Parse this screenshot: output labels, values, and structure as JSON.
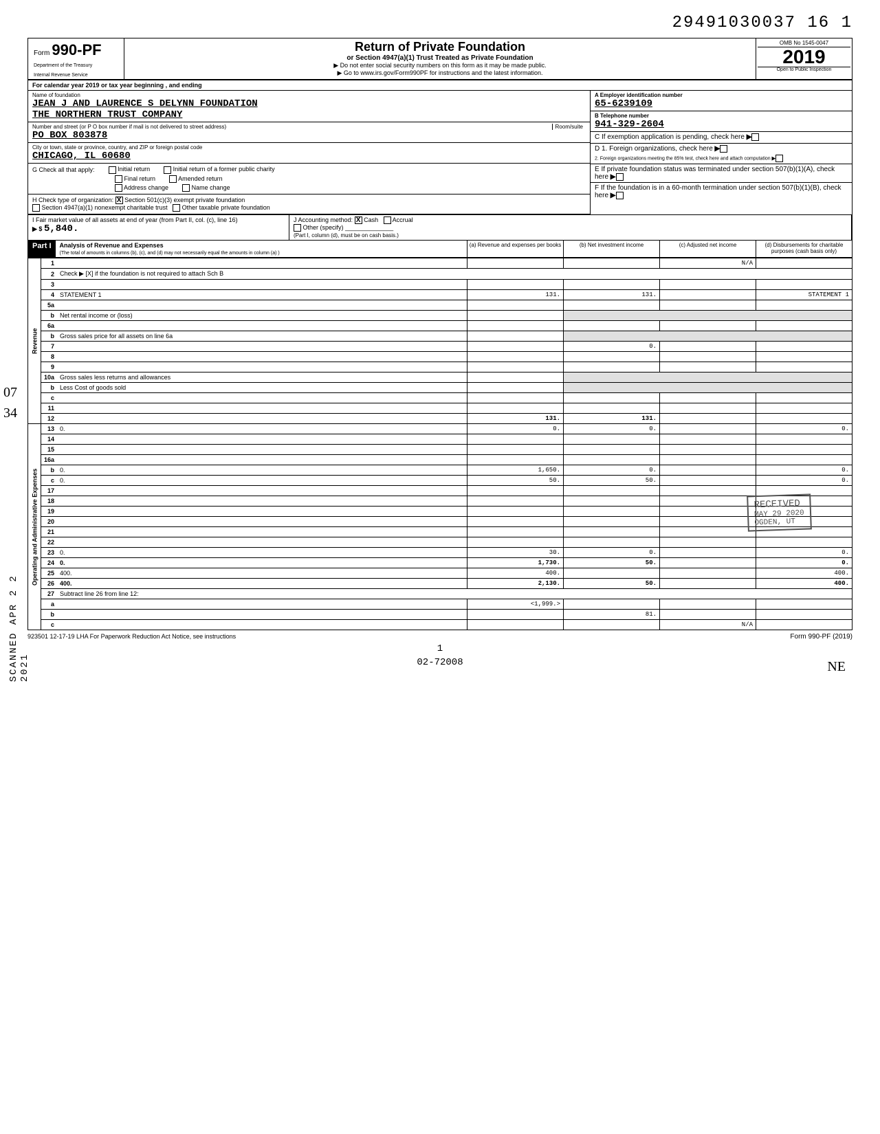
{
  "header": {
    "dln": "29491030037 16  1",
    "form_prefix": "Form",
    "form_number": "990-PF",
    "dept1": "Department of the Treasury",
    "dept2": "Internal Revenue Service",
    "title": "Return of Private Foundation",
    "subtitle": "or Section 4947(a)(1) Trust Treated as Private Foundation",
    "note1": "▶ Do not enter social security numbers on this form as it may be made public.",
    "note2": "▶ Go to www.irs.gov/Form990PF for instructions and the latest information.",
    "omb": "OMB No  1545-0047",
    "year": "2019",
    "open": "Open to Public Inspection"
  },
  "tax_year_line": "For calendar year 2019 or tax year beginning                                                              , and ending",
  "foundation": {
    "name_label": "Name of foundation",
    "name1": "JEAN J AND LAURENCE S DELYNN FOUNDATION",
    "name2": "THE NORTHERN TRUST COMPANY",
    "street_label": "Number and street (or P O  box number if mail is not delivered to street address)",
    "room_label": "Room/suite",
    "street": "PO BOX 803878",
    "city_label": "City or town, state or province, country, and ZIP or foreign postal code",
    "city": "CHICAGO, IL   60680"
  },
  "boxA": {
    "label": "A  Employer identification number",
    "value": "65-6239109"
  },
  "boxB": {
    "label": "B  Telephone number",
    "value": "941-329-2604"
  },
  "boxC": {
    "label": "C  If exemption application is pending, check here"
  },
  "boxD": {
    "line1": "D  1. Foreign organizations, check here",
    "line2": "2. Foreign organizations meeting the 85%  test, check here and attach computation"
  },
  "boxE": {
    "label": "E  If private foundation status was terminated under section 507(b)(1)(A), check here"
  },
  "boxF": {
    "label": "F  If the foundation is in a 60-month termination under section 507(b)(1)(B), check here"
  },
  "checkG": {
    "label": "G  Check all that apply:",
    "opts": [
      "Initial return",
      "Final return",
      "Address change",
      "Initial return of a former public charity",
      "Amended return",
      "Name change"
    ]
  },
  "checkH": {
    "label": "H  Check type of organization:",
    "opt1": "Section 501(c)(3) exempt private foundation",
    "opt2": "Section 4947(a)(1) nonexempt charitable trust",
    "opt3": "Other taxable private foundation"
  },
  "fmv": {
    "label": "I  Fair market value of all assets at end of year (from Part II, col. (c), line 16)",
    "arrow": "▶ $",
    "value": "5,840.",
    "jlabel": "J   Accounting method:",
    "cash": "Cash",
    "accrual": "Accrual",
    "other": "Other (specify)",
    "note": "(Part I, column (d), must be on cash basis.)"
  },
  "part1": {
    "label": "Part I",
    "title": "Analysis of Revenue and Expenses",
    "note": "(The total of amounts in columns (b), (c), and (d) may not necessarily equal the amounts in column (a) )",
    "cols": {
      "a": "(a) Revenue and expenses per books",
      "b": "(b) Net investment income",
      "c": "(c) Adjusted net income",
      "d": "(d) Disbursements for charitable purposes (cash basis only)"
    }
  },
  "sections": {
    "revenue": "Revenue",
    "expenses": "Operating and Administrative Expenses"
  },
  "rows": [
    {
      "n": "1",
      "d": "",
      "a": "",
      "b": "",
      "c": "N/A"
    },
    {
      "n": "2",
      "d": "Check ▶ [X] if the foundation is not required to attach Sch  B",
      "span": true
    },
    {
      "n": "3",
      "d": "",
      "a": "",
      "b": "",
      "c": ""
    },
    {
      "n": "4",
      "d": "STATEMENT 1",
      "a": "131.",
      "b": "131.",
      "c": ""
    },
    {
      "n": "5a",
      "d": "",
      "a": "",
      "b": "",
      "c": ""
    },
    {
      "n": "b",
      "d": "Net rental income or (loss)",
      "short": true
    },
    {
      "n": "6a",
      "d": "",
      "a": "",
      "b": "",
      "c": ""
    },
    {
      "n": "b",
      "d": "Gross sales price for all assets on line 6a",
      "short": true
    },
    {
      "n": "7",
      "d": "",
      "a": "",
      "b": "0.",
      "c": ""
    },
    {
      "n": "8",
      "d": "",
      "a": "",
      "b": "",
      "c": ""
    },
    {
      "n": "9",
      "d": "",
      "a": "",
      "b": "",
      "c": ""
    },
    {
      "n": "10a",
      "d": "Gross sales less returns and allowances",
      "short": true
    },
    {
      "n": "b",
      "d": "Less  Cost of goods sold",
      "short": true
    },
    {
      "n": "c",
      "d": "",
      "a": "",
      "b": "",
      "c": ""
    },
    {
      "n": "11",
      "d": "",
      "a": "",
      "b": "",
      "c": ""
    },
    {
      "n": "12",
      "d": "",
      "a": "131.",
      "b": "131.",
      "c": "",
      "bold": true
    },
    {
      "n": "13",
      "d": "0.",
      "a": "0.",
      "b": "0.",
      "c": ""
    },
    {
      "n": "14",
      "d": "",
      "a": "",
      "b": "",
      "c": ""
    },
    {
      "n": "15",
      "d": "",
      "a": "",
      "b": "",
      "c": ""
    },
    {
      "n": "16a",
      "d": "",
      "a": "",
      "b": "",
      "c": ""
    },
    {
      "n": "b",
      "d": "0.",
      "a": "1,650.",
      "b": "0.",
      "c": ""
    },
    {
      "n": "c",
      "d": "0.",
      "a": "50.",
      "b": "50.",
      "c": ""
    },
    {
      "n": "17",
      "d": "",
      "a": "",
      "b": "",
      "c": ""
    },
    {
      "n": "18",
      "d": "",
      "a": "",
      "b": "",
      "c": ""
    },
    {
      "n": "19",
      "d": "",
      "a": "",
      "b": "",
      "c": ""
    },
    {
      "n": "20",
      "d": "",
      "a": "",
      "b": "",
      "c": ""
    },
    {
      "n": "21",
      "d": "",
      "a": "",
      "b": "",
      "c": ""
    },
    {
      "n": "22",
      "d": "",
      "a": "",
      "b": "",
      "c": ""
    },
    {
      "n": "23",
      "d": "0.",
      "a": "30.",
      "b": "0.",
      "c": ""
    },
    {
      "n": "24",
      "d": "0.",
      "a": "1,730.",
      "b": "50.",
      "c": "",
      "bold": true
    },
    {
      "n": "25",
      "d": "400.",
      "a": "400.",
      "b": "",
      "c": ""
    },
    {
      "n": "26",
      "d": "400.",
      "a": "2,130.",
      "b": "50.",
      "c": "",
      "bold": true
    },
    {
      "n": "27",
      "d": "Subtract line 26 from line 12:",
      "span": true
    },
    {
      "n": "a",
      "d": "",
      "a": "<1,999.>",
      "b": "",
      "c": ""
    },
    {
      "n": "b",
      "d": "",
      "a": "",
      "b": "81.",
      "c": "",
      "boldd": true
    },
    {
      "n": "c",
      "d": "",
      "a": "",
      "b": "",
      "c": "N/A",
      "boldd": true
    }
  ],
  "stamps": {
    "received": "RECEIVED",
    "date": "MAY 29 2020",
    "ogden": "OGDEN, UT",
    "scanned": "SCANNED APR 2 2 2021"
  },
  "footer": {
    "left": "923501  12-17-19   LHA   For Paperwork Reduction Act Notice, see instructions",
    "right": "Form 990-PF (2019)",
    "page": "1",
    "hand": "02-72008",
    "ne": "NE"
  },
  "margin_notes": {
    "o7": "07",
    "n34": "34"
  }
}
